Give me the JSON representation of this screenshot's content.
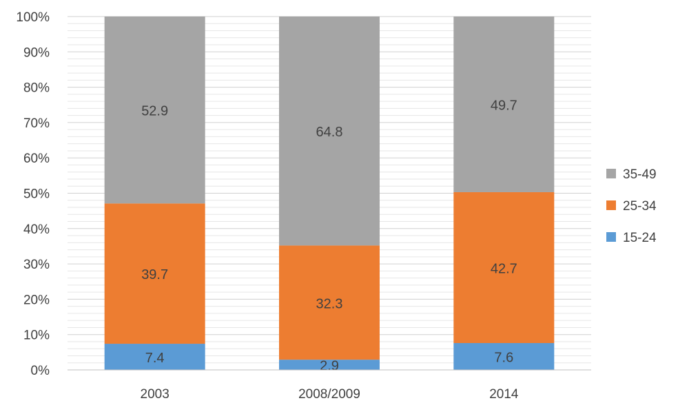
{
  "chart_data": {
    "type": "bar",
    "stacked": true,
    "normalized": true,
    "categories": [
      "2003",
      "2008/2009",
      "2014"
    ],
    "series": [
      {
        "name": "15-24",
        "color": "#5b9bd5",
        "values": [
          7.4,
          2.9,
          7.6
        ]
      },
      {
        "name": "25-34",
        "color": "#ed7d31",
        "values": [
          39.7,
          32.3,
          42.7
        ]
      },
      {
        "name": "35-49",
        "color": "#a5a5a5",
        "values": [
          52.9,
          64.8,
          49.7
        ]
      }
    ],
    "ylim": [
      0,
      100
    ],
    "y_ticks": [
      "0%",
      "10%",
      "20%",
      "30%",
      "40%",
      "50%",
      "60%",
      "70%",
      "80%",
      "90%",
      "100%"
    ],
    "grid": true,
    "legend_position": "right",
    "legend_order": [
      "35-49",
      "25-34",
      "15-24"
    ]
  }
}
